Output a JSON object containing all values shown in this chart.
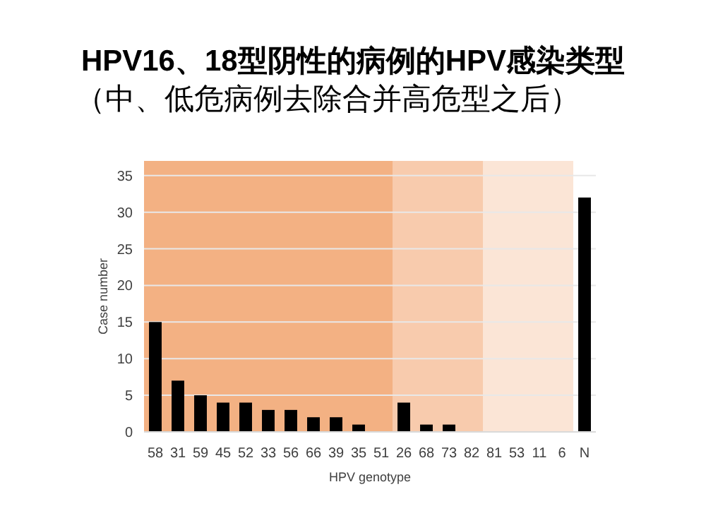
{
  "chart_data": {
    "type": "bar",
    "title": "HPV16、18型阴性的病例的HPV感染类型",
    "subtitle": "（中、低危病例去除合并高危型之后）",
    "xlabel": "HPV genotype",
    "ylabel": "Case number",
    "categories": [
      "58",
      "31",
      "59",
      "45",
      "52",
      "33",
      "56",
      "66",
      "39",
      "35",
      "51",
      "26",
      "68",
      "73",
      "82",
      "81",
      "53",
      "11",
      "6",
      "N"
    ],
    "values": [
      15,
      7,
      5,
      4,
      4,
      3,
      3,
      2,
      2,
      1,
      0,
      4,
      1,
      1,
      0,
      0,
      0,
      0,
      0,
      32
    ],
    "color": "#000000",
    "ylim": [
      0,
      37
    ],
    "yticks": [
      0,
      5,
      10,
      15,
      20,
      25,
      30,
      35
    ],
    "grid": "y",
    "bands": [
      {
        "axis": "x",
        "from": "58",
        "to": "51",
        "color": "#f3b183"
      },
      {
        "axis": "x",
        "from": "26",
        "to": "82",
        "color": "#f8cbad"
      },
      {
        "axis": "x",
        "from": "81",
        "to": "6",
        "color": "#fbe5d6"
      }
    ]
  }
}
